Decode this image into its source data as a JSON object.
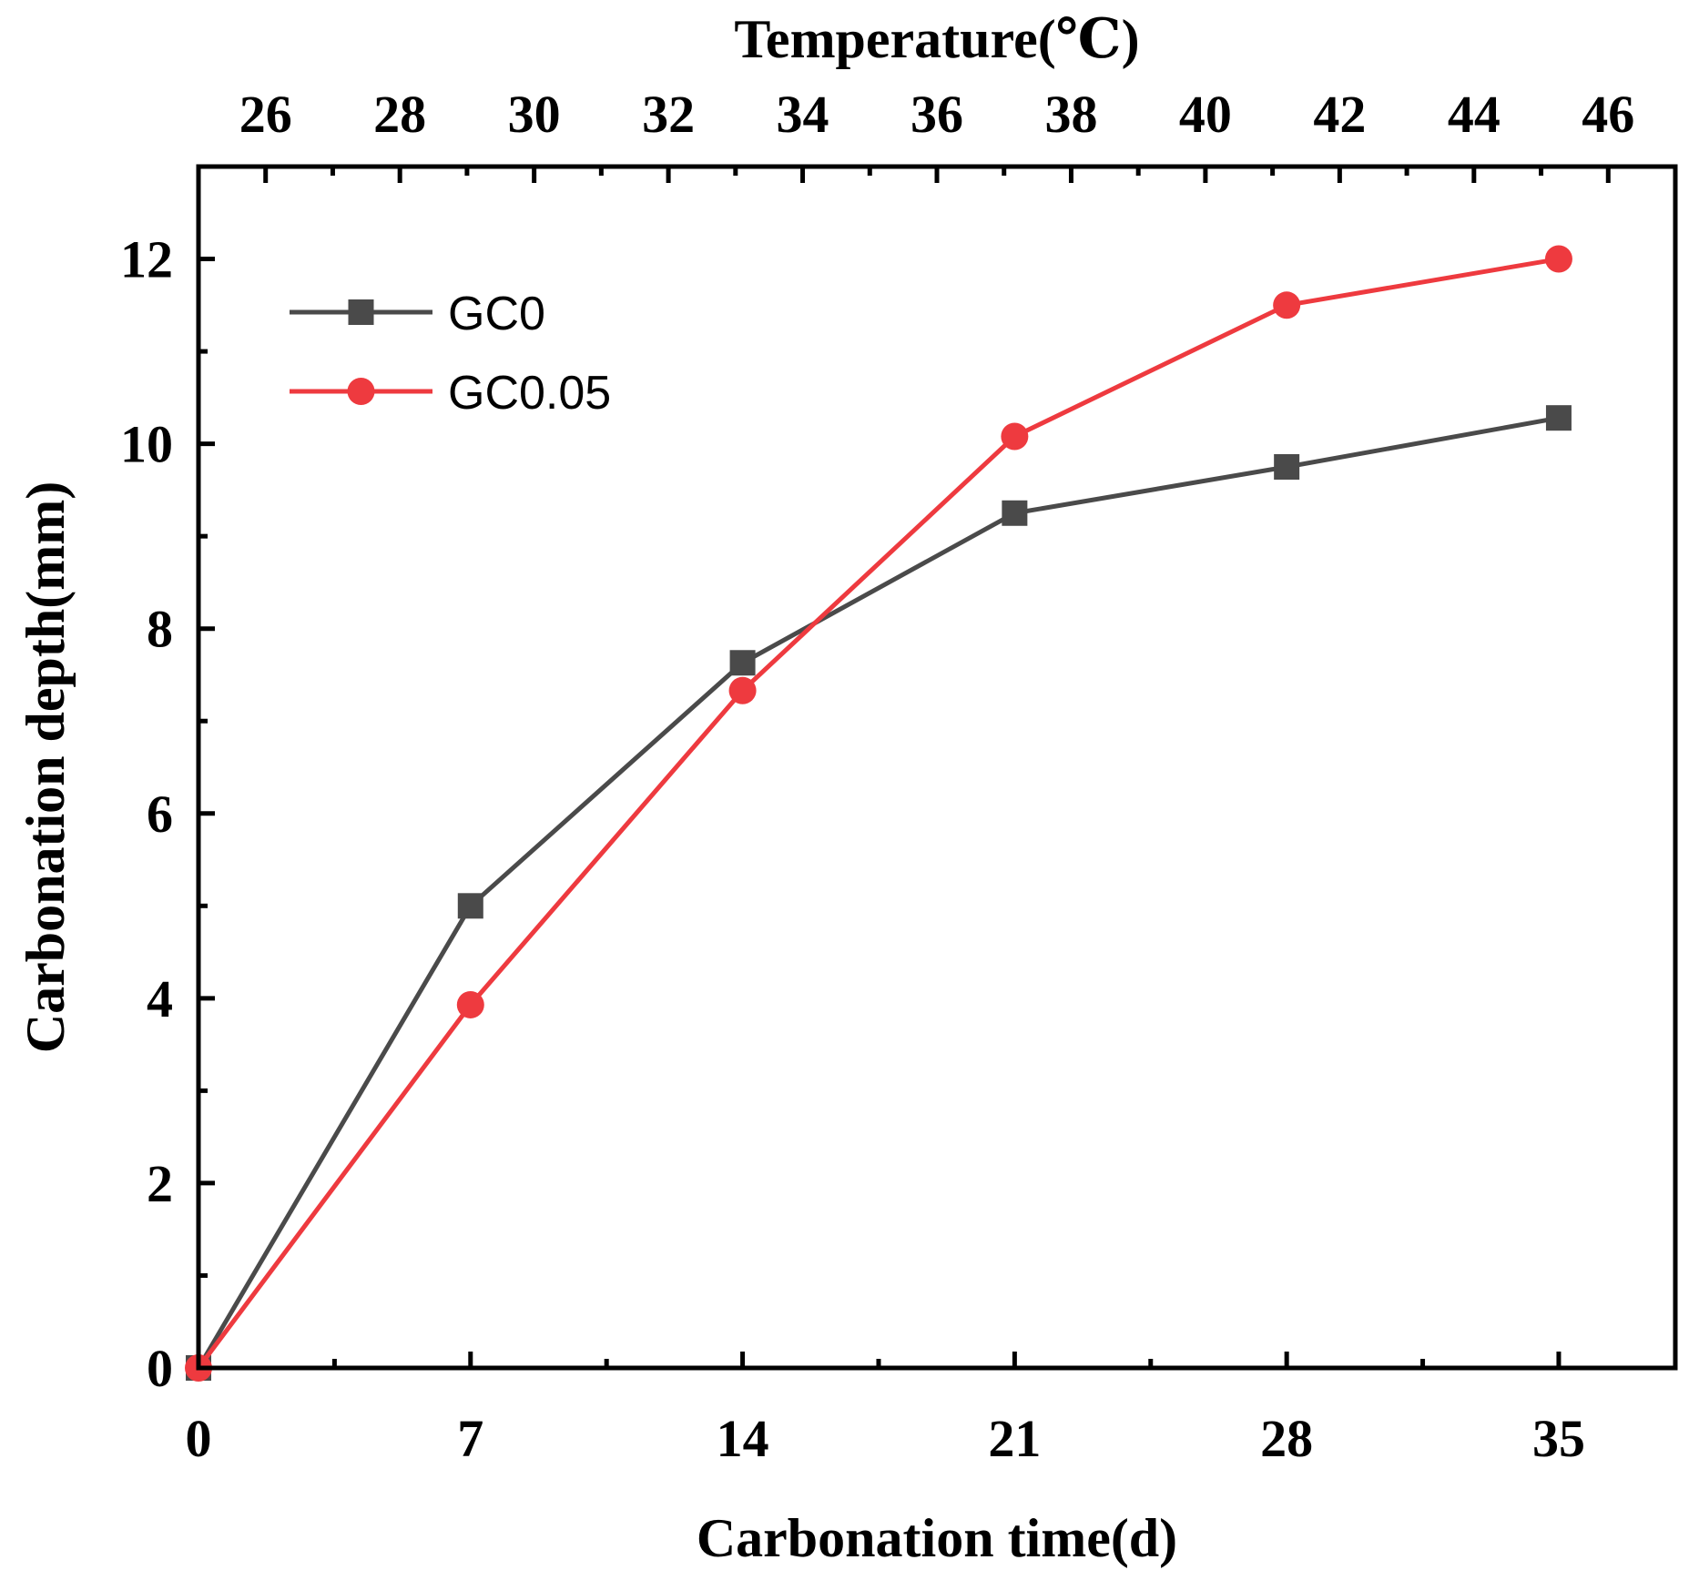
{
  "chart_data": {
    "type": "line",
    "xlabel": "Carbonation time(d)",
    "ylabel": "Carbonation depth(mm)",
    "top_xlabel": "Temperature(℃)",
    "xlim": [
      0,
      38
    ],
    "ylim": [
      0,
      13
    ],
    "x_ticks": [
      0,
      7,
      14,
      21,
      28,
      35
    ],
    "x_tick_labels": [
      "0",
      "7",
      "14",
      "21",
      "28",
      "35"
    ],
    "y_ticks": [
      0,
      2,
      4,
      6,
      8,
      10,
      12
    ],
    "y_tick_labels": [
      "0",
      "2",
      "4",
      "6",
      "8",
      "10",
      "12"
    ],
    "top_xlim": [
      25,
      47
    ],
    "top_ticks": [
      26,
      28,
      30,
      32,
      34,
      36,
      38,
      40,
      42,
      44,
      46
    ],
    "top_tick_labels": [
      "26",
      "28",
      "30",
      "32",
      "34",
      "36",
      "38",
      "40",
      "42",
      "44",
      "46"
    ],
    "legend_position": "top-left",
    "x": [
      0,
      7,
      14,
      21,
      28,
      35
    ],
    "series": [
      {
        "name": "GC0",
        "marker": "square",
        "color": "#4a4a4a",
        "values": [
          0,
          5.0,
          7.63,
          9.25,
          9.75,
          10.28
        ]
      },
      {
        "name": "GC0.05",
        "marker": "circle",
        "color": "#ee3a3f",
        "values": [
          0,
          3.93,
          7.33,
          10.08,
          11.5,
          12.0
        ]
      }
    ]
  }
}
